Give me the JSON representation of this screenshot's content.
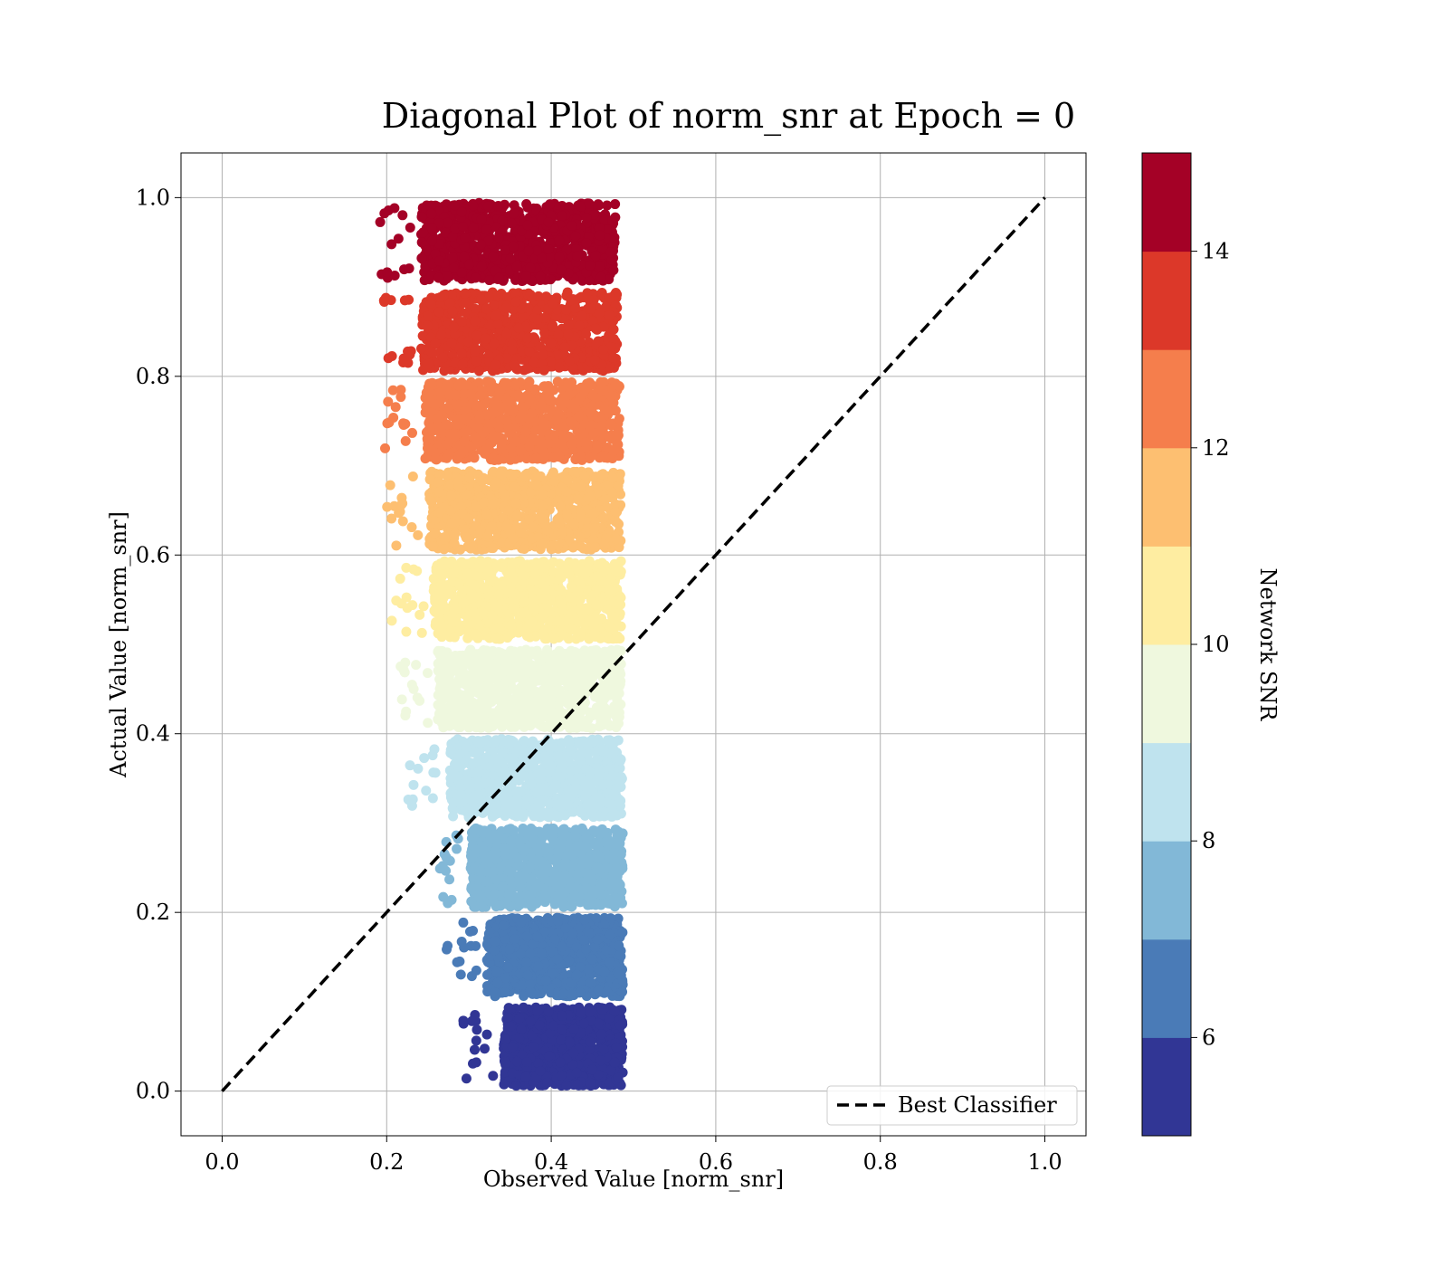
{
  "chart_data": {
    "type": "scatter",
    "title": "Diagonal Plot of norm_snr at Epoch = 0",
    "xlabel": "Observed Value [norm_snr]",
    "ylabel": "Actual Value [norm_snr]",
    "xlim": [
      -0.05,
      1.05
    ],
    "ylim": [
      -0.05,
      1.05
    ],
    "xticks": [
      "0.0",
      "0.2",
      "0.4",
      "0.6",
      "0.8",
      "1.0"
    ],
    "yticks": [
      "0.0",
      "0.2",
      "0.4",
      "0.6",
      "0.8",
      "1.0"
    ],
    "grid": true,
    "legend": {
      "position": "lower-right",
      "entries": [
        "Best Classifier"
      ]
    },
    "reference_line": {
      "name": "Best Classifier",
      "style": "dashed",
      "color": "#000000",
      "x": [
        0,
        1
      ],
      "y": [
        0,
        1
      ]
    },
    "colorbar": {
      "label": "Network SNR",
      "range": [
        5,
        15
      ],
      "ticks": [
        "6",
        "8",
        "10",
        "12",
        "14"
      ],
      "colors": [
        "#313695",
        "#4a7bb7",
        "#82b8d7",
        "#bfe3ee",
        "#eff8de",
        "#feeda1",
        "#fdbf71",
        "#f57e4c",
        "#dc3829",
        "#a40126"
      ]
    },
    "bands": [
      {
        "snr_range": [
          5,
          6
        ],
        "actual_range": [
          0.0,
          0.1
        ],
        "observed_range": [
          0.33,
          0.487
        ],
        "color": "#313695"
      },
      {
        "snr_range": [
          6,
          7
        ],
        "actual_range": [
          0.1,
          0.2
        ],
        "observed_range": [
          0.31,
          0.487
        ],
        "color": "#4a7bb7"
      },
      {
        "snr_range": [
          7,
          8
        ],
        "actual_range": [
          0.2,
          0.3
        ],
        "observed_range": [
          0.29,
          0.487
        ],
        "color": "#82b8d7"
      },
      {
        "snr_range": [
          8,
          9
        ],
        "actual_range": [
          0.3,
          0.4
        ],
        "observed_range": [
          0.265,
          0.487
        ],
        "color": "#bfe3ee"
      },
      {
        "snr_range": [
          9,
          10
        ],
        "actual_range": [
          0.4,
          0.5
        ],
        "observed_range": [
          0.25,
          0.485
        ],
        "color": "#eff8de"
      },
      {
        "snr_range": [
          10,
          11
        ],
        "actual_range": [
          0.5,
          0.6
        ],
        "observed_range": [
          0.245,
          0.485
        ],
        "color": "#feeda1"
      },
      {
        "snr_range": [
          11,
          12
        ],
        "actual_range": [
          0.6,
          0.7
        ],
        "observed_range": [
          0.24,
          0.485
        ],
        "color": "#fdbf71"
      },
      {
        "snr_range": [
          12,
          13
        ],
        "actual_range": [
          0.7,
          0.8
        ],
        "observed_range": [
          0.235,
          0.483
        ],
        "color": "#f57e4c"
      },
      {
        "snr_range": [
          13,
          14
        ],
        "actual_range": [
          0.8,
          0.9
        ],
        "observed_range": [
          0.23,
          0.48
        ],
        "color": "#dc3829"
      },
      {
        "snr_range": [
          14,
          15
        ],
        "actual_range": [
          0.9,
          1.0
        ],
        "observed_range": [
          0.23,
          0.478
        ],
        "color": "#a40126"
      }
    ]
  }
}
